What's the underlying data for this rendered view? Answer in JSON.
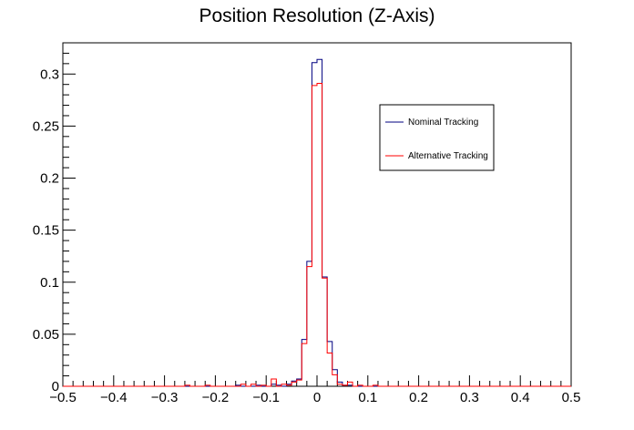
{
  "chart_data": {
    "type": "histogram",
    "title": "Position Resolution (Z-Axis)",
    "xlabel": "",
    "ylabel": "",
    "xlim": [
      -0.5,
      0.5
    ],
    "ylim": [
      0,
      0.33
    ],
    "bin_width": 0.01,
    "grid": false,
    "legend_position": "top-right",
    "x_ticks": [
      "-0.5",
      "-0.4",
      "-0.3",
      "-0.2",
      "-0.1",
      "0",
      "0.1",
      "0.2",
      "0.3",
      "0.4",
      "0.5"
    ],
    "x_tick_values": [
      -0.5,
      -0.4,
      -0.3,
      -0.2,
      -0.1,
      0,
      0.1,
      0.2,
      0.3,
      0.4,
      0.5
    ],
    "y_ticks": [
      "0",
      "0.05",
      "0.1",
      "0.15",
      "0.2",
      "0.25",
      "0.3"
    ],
    "y_tick_values": [
      0,
      0.05,
      0.1,
      0.15,
      0.2,
      0.25,
      0.3
    ],
    "series": [
      {
        "name": "Nominal Tracking",
        "color": "#000080",
        "bins": [
          [
            -0.16,
            0.001
          ],
          [
            -0.12,
            0.001
          ],
          [
            -0.09,
            0.002
          ],
          [
            -0.08,
            0.001
          ],
          [
            -0.06,
            0.002
          ],
          [
            -0.05,
            0.005
          ],
          [
            -0.04,
            0.007
          ],
          [
            -0.03,
            0.045
          ],
          [
            -0.02,
            0.12
          ],
          [
            -0.01,
            0.311
          ],
          [
            0.0,
            0.314
          ],
          [
            0.01,
            0.105
          ],
          [
            0.02,
            0.043
          ],
          [
            0.03,
            0.016
          ],
          [
            0.04,
            0.004
          ],
          [
            0.05,
            0.001
          ],
          [
            0.06,
            0.001
          ]
        ]
      },
      {
        "name": "Alternative Tracking",
        "color": "#ff0000",
        "bins": [
          [
            -0.26,
            0.001
          ],
          [
            -0.22,
            0.001
          ],
          [
            -0.15,
            0.002
          ],
          [
            -0.13,
            0.002
          ],
          [
            -0.11,
            0.001
          ],
          [
            -0.09,
            0.007
          ],
          [
            -0.07,
            0.002
          ],
          [
            -0.06,
            0.001
          ],
          [
            -0.05,
            0.004
          ],
          [
            -0.04,
            0.006
          ],
          [
            -0.03,
            0.041
          ],
          [
            -0.02,
            0.115
          ],
          [
            -0.01,
            0.289
          ],
          [
            0.0,
            0.291
          ],
          [
            0.01,
            0.104
          ],
          [
            0.02,
            0.032
          ],
          [
            0.03,
            0.011
          ],
          [
            0.04,
            0.002
          ],
          [
            0.05,
            0.001
          ],
          [
            0.06,
            0.004
          ],
          [
            0.08,
            0.001
          ],
          [
            0.11,
            0.001
          ]
        ]
      }
    ]
  }
}
